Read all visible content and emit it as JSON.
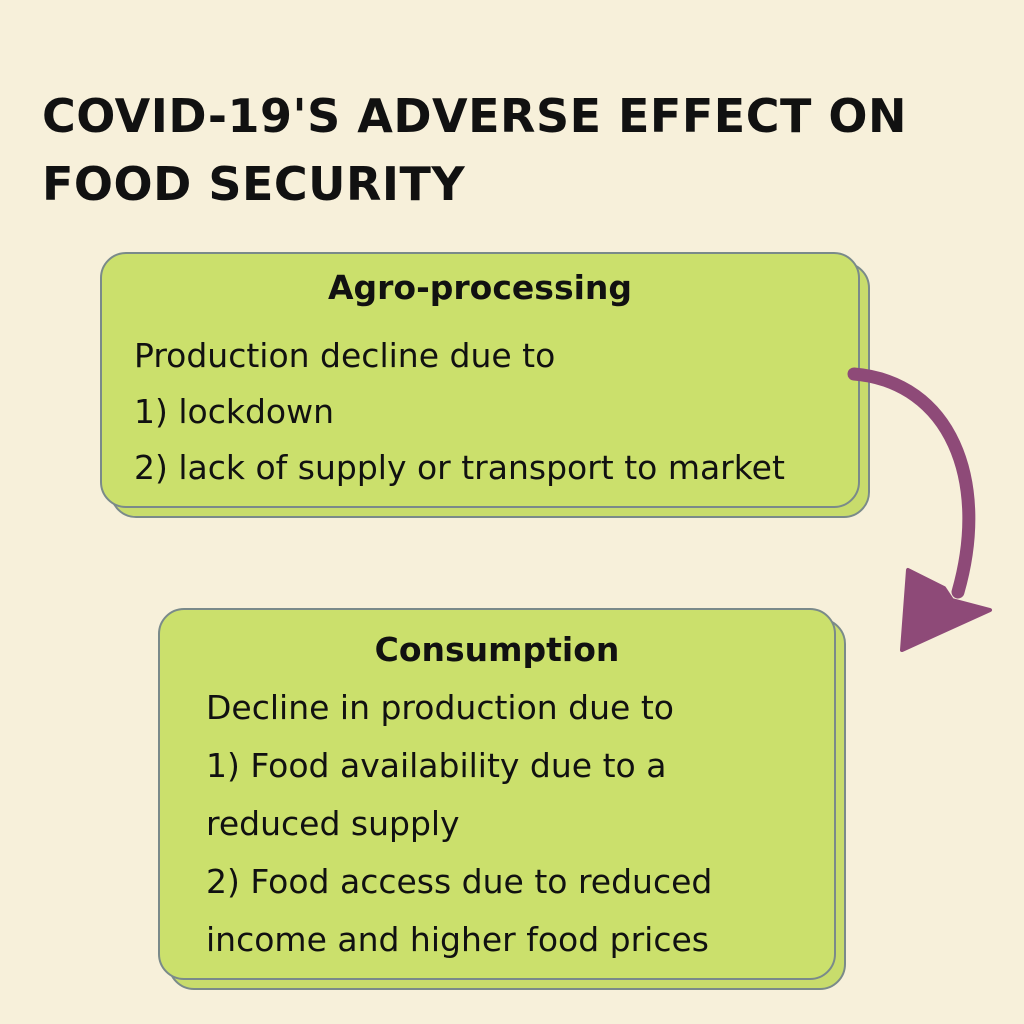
{
  "title": {
    "line1": "COVID-19'S ADVERSE EFFECT ON",
    "line2": "FOOD SECURITY"
  },
  "agro": {
    "heading": "Agro-processing",
    "lines": [
      "Production decline due to",
      "1) lockdown",
      "2) lack of supply or transport to market"
    ]
  },
  "consumption": {
    "heading": "Consumption",
    "lines": [
      "Decline in production due to",
      "1)  Food  availability  due  to   a",
      "reduced supply",
      "2)  Food  access  due  to  reduced",
      "income and higher food prices"
    ]
  },
  "colors": {
    "background": "#f7f0da",
    "card_fill": "#cbe06c",
    "card_border": "#7a8a8a",
    "arrow": "#8e4a78",
    "text": "#111111"
  },
  "icons": {
    "connector": "curved-arrow-down"
  }
}
